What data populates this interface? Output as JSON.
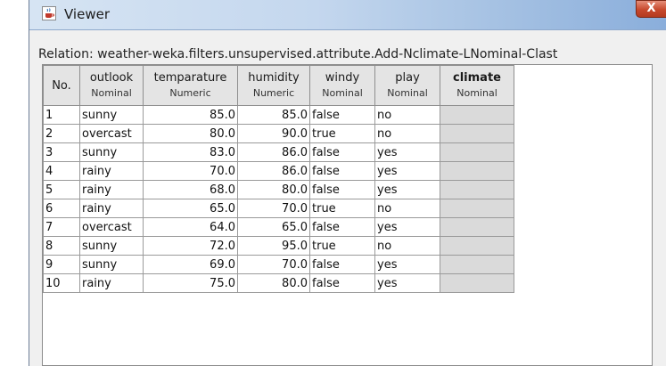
{
  "window": {
    "title": "Viewer",
    "close_glyph": "X"
  },
  "relation": {
    "text": "Relation: weather-weka.filters.unsupervised.attribute.Add-Nclimate-LNominal-Clast"
  },
  "table": {
    "columns": [
      {
        "name": "No.",
        "type": ""
      },
      {
        "name": "outlook",
        "type": "Nominal"
      },
      {
        "name": "temparature",
        "type": "Numeric"
      },
      {
        "name": "humidity",
        "type": "Numeric"
      },
      {
        "name": "windy",
        "type": "Nominal"
      },
      {
        "name": "play",
        "type": "Nominal"
      },
      {
        "name": "climate",
        "type": "Nominal"
      }
    ],
    "rows": [
      {
        "no": "1",
        "outlook": "sunny",
        "temparature": "85.0",
        "humidity": "85.0",
        "windy": "false",
        "play": "no",
        "climate": ""
      },
      {
        "no": "2",
        "outlook": "overcast",
        "temparature": "80.0",
        "humidity": "90.0",
        "windy": "true",
        "play": "no",
        "climate": ""
      },
      {
        "no": "3",
        "outlook": "sunny",
        "temparature": "83.0",
        "humidity": "86.0",
        "windy": "false",
        "play": "yes",
        "climate": ""
      },
      {
        "no": "4",
        "outlook": "rainy",
        "temparature": "70.0",
        "humidity": "86.0",
        "windy": "false",
        "play": "yes",
        "climate": ""
      },
      {
        "no": "5",
        "outlook": "rainy",
        "temparature": "68.0",
        "humidity": "80.0",
        "windy": "false",
        "play": "yes",
        "climate": ""
      },
      {
        "no": "6",
        "outlook": "rainy",
        "temparature": "65.0",
        "humidity": "70.0",
        "windy": "true",
        "play": "no",
        "climate": ""
      },
      {
        "no": "7",
        "outlook": "overcast",
        "temparature": "64.0",
        "humidity": "65.0",
        "windy": "false",
        "play": "yes",
        "climate": ""
      },
      {
        "no": "8",
        "outlook": "sunny",
        "temparature": "72.0",
        "humidity": "95.0",
        "windy": "true",
        "play": "no",
        "climate": ""
      },
      {
        "no": "9",
        "outlook": "sunny",
        "temparature": "69.0",
        "humidity": "70.0",
        "windy": "false",
        "play": "yes",
        "climate": ""
      },
      {
        "no": "10",
        "outlook": "rainy",
        "temparature": "75.0",
        "humidity": "80.0",
        "windy": "false",
        "play": "yes",
        "climate": ""
      }
    ]
  },
  "icons": {
    "window": "java-cup-icon",
    "close": "close-icon"
  },
  "colors": {
    "titlebar_start": "#d6e4f3",
    "titlebar_end": "#8aaedb",
    "close_button": "#c7492d",
    "missing_cell": "#dadada"
  }
}
